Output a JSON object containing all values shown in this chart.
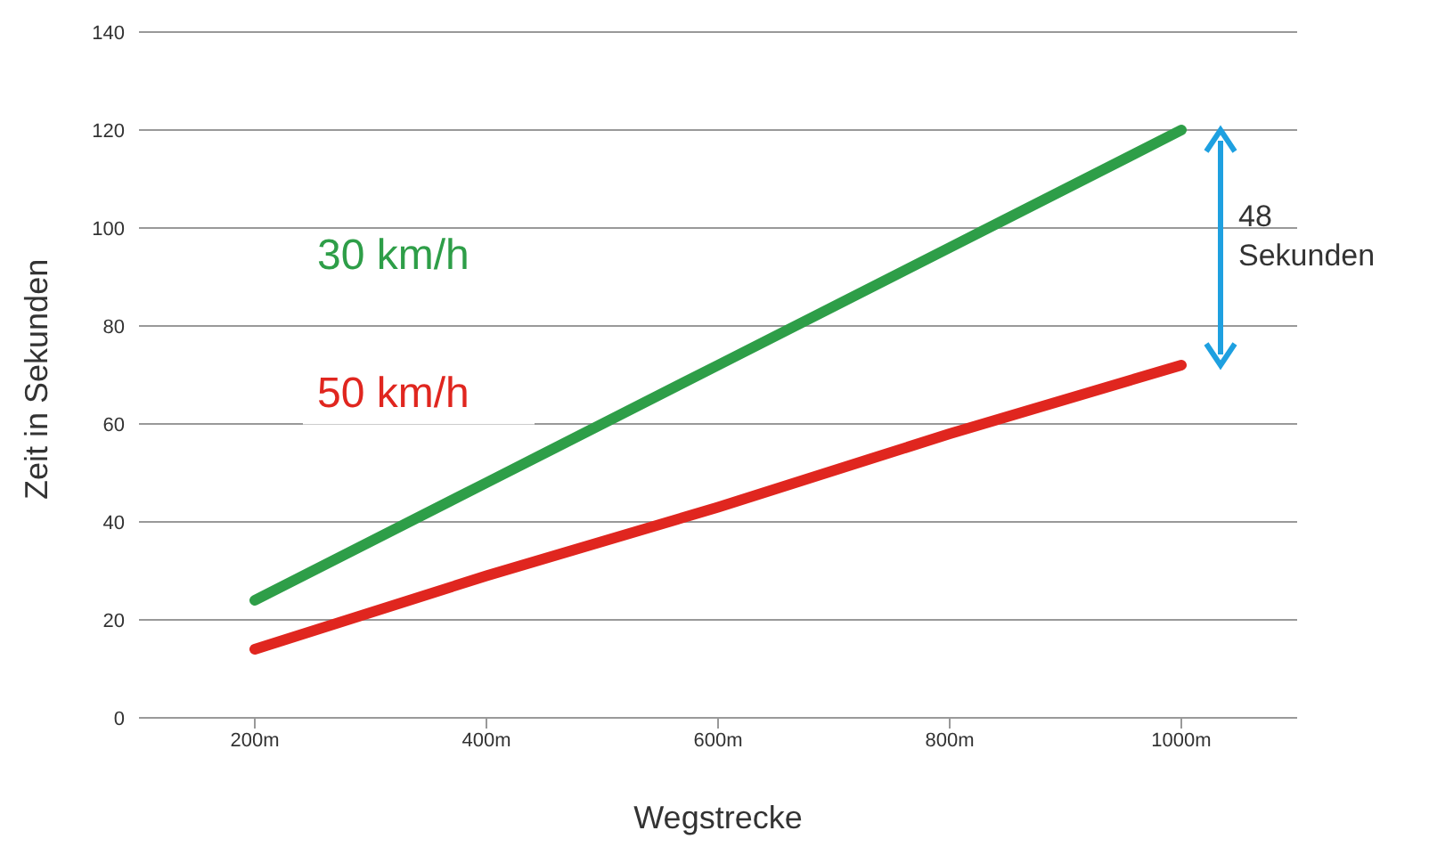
{
  "chart_data": {
    "type": "line",
    "xlabel": "Wegstrecke",
    "ylabel": "Zeit in Sekunden",
    "categories": [
      "200m",
      "400m",
      "600m",
      "800m",
      "1000m"
    ],
    "series": [
      {
        "name": "30 km/h",
        "color": "#2e9e48",
        "values": [
          24,
          48,
          72,
          96,
          120
        ]
      },
      {
        "name": "50 km/h",
        "color": "#e0261f",
        "values": [
          14,
          29,
          43,
          58,
          72
        ]
      }
    ],
    "ylim": [
      0,
      140
    ],
    "yticks": [
      0,
      20,
      40,
      60,
      80,
      100,
      120,
      140
    ],
    "grid": "y",
    "marker": "none",
    "annotations": [
      "48 Sekunden"
    ]
  }
}
